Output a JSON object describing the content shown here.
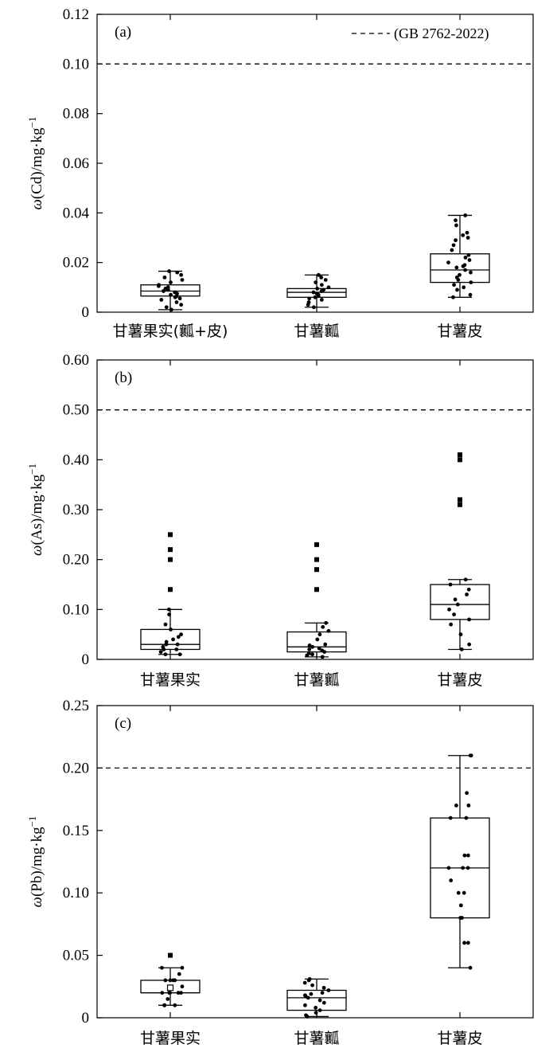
{
  "chart_data": [
    {
      "type": "box",
      "panel_label": "(a)",
      "ylabel_pre": "ω",
      "ylabel_mid": "(Cd)/mg·kg",
      "ylabel_sup": "−1",
      "ylim": [
        0,
        0.12
      ],
      "yticks": [
        "0",
        "0.02",
        "0.04",
        "0.06",
        "0.08",
        "0.10",
        "0.12"
      ],
      "ytick_values": [
        0,
        0.02,
        0.04,
        0.06,
        0.08,
        0.1,
        0.12
      ],
      "categories": [
        "甘薯果实(瓤+皮)",
        "甘薯瓤",
        "甘薯皮"
      ],
      "threshold": 0.1,
      "legend": "(GB 2762-2022)",
      "boxes": [
        {
          "q1": 0.0065,
          "median": 0.0085,
          "q3": 0.011,
          "whisker_low": 0.001,
          "whisker_high": 0.0165,
          "points": [
            0.001,
            0.002,
            0.003,
            0.004,
            0.005,
            0.0055,
            0.006,
            0.0065,
            0.007,
            0.0075,
            0.008,
            0.0085,
            0.009,
            0.0095,
            0.01,
            0.0105,
            0.011,
            0.012,
            0.013,
            0.014,
            0.015,
            0.016,
            0.0165
          ],
          "outliers": []
        },
        {
          "q1": 0.006,
          "median": 0.008,
          "q3": 0.0095,
          "whisker_low": 0.002,
          "whisker_high": 0.015,
          "points": [
            0.002,
            0.003,
            0.004,
            0.005,
            0.0055,
            0.006,
            0.0065,
            0.007,
            0.0075,
            0.008,
            0.0085,
            0.009,
            0.0095,
            0.01,
            0.011,
            0.012,
            0.013,
            0.014,
            0.015
          ],
          "outliers": []
        },
        {
          "q1": 0.012,
          "median": 0.017,
          "q3": 0.0235,
          "whisker_low": 0.006,
          "whisker_high": 0.039,
          "points": [
            0.006,
            0.007,
            0.009,
            0.01,
            0.011,
            0.012,
            0.013,
            0.014,
            0.015,
            0.016,
            0.017,
            0.018,
            0.0185,
            0.019,
            0.02,
            0.021,
            0.022,
            0.023,
            0.025,
            0.027,
            0.029,
            0.03,
            0.031,
            0.032,
            0.035,
            0.037,
            0.039
          ],
          "outliers": []
        }
      ]
    },
    {
      "type": "box",
      "panel_label": "(b)",
      "ylabel_pre": "ω",
      "ylabel_mid": "(As)/mg·kg",
      "ylabel_sup": "−1",
      "ylim": [
        0,
        0.6
      ],
      "yticks": [
        "0",
        "0.10",
        "0.20",
        "0.30",
        "0.40",
        "0.50",
        "0.60"
      ],
      "ytick_values": [
        0,
        0.1,
        0.2,
        0.3,
        0.4,
        0.5,
        0.6
      ],
      "categories": [
        "甘薯果实",
        "甘薯瓤",
        "甘薯皮"
      ],
      "threshold": 0.5,
      "legend": "",
      "boxes": [
        {
          "q1": 0.02,
          "median": 0.03,
          "q3": 0.06,
          "whisker_low": 0.01,
          "whisker_high": 0.1,
          "points": [
            0.01,
            0.01,
            0.015,
            0.02,
            0.02,
            0.025,
            0.03,
            0.03,
            0.035,
            0.04,
            0.045,
            0.05,
            0.06,
            0.07,
            0.09,
            0.1
          ],
          "outliers": [
            0.14,
            0.2,
            0.22,
            0.25
          ]
        },
        {
          "q1": 0.015,
          "median": 0.025,
          "q3": 0.055,
          "whisker_low": 0.005,
          "whisker_high": 0.073,
          "points": [
            0.005,
            0.008,
            0.01,
            0.012,
            0.015,
            0.018,
            0.02,
            0.022,
            0.025,
            0.028,
            0.03,
            0.04,
            0.05,
            0.057,
            0.065,
            0.073
          ],
          "outliers": [
            0.14,
            0.18,
            0.2,
            0.23
          ]
        },
        {
          "q1": 0.08,
          "median": 0.11,
          "q3": 0.15,
          "whisker_low": 0.02,
          "whisker_high": 0.16,
          "points": [
            0.02,
            0.03,
            0.05,
            0.07,
            0.08,
            0.09,
            0.1,
            0.11,
            0.12,
            0.13,
            0.14,
            0.15,
            0.16
          ],
          "outliers": [
            0.31,
            0.32,
            0.4,
            0.41
          ]
        }
      ]
    },
    {
      "type": "box",
      "panel_label": "(c)",
      "ylabel_pre": "ω",
      "ylabel_mid": "(Pb)/mg·kg",
      "ylabel_sup": "−1",
      "ylim": [
        0,
        0.25
      ],
      "yticks": [
        "0",
        "0.05",
        "0.10",
        "0.15",
        "0.20",
        "0.25"
      ],
      "ytick_values": [
        0,
        0.05,
        0.1,
        0.15,
        0.2,
        0.25
      ],
      "categories": [
        "甘薯果实",
        "甘薯瓤",
        "甘薯皮"
      ],
      "threshold": 0.2,
      "legend": "",
      "boxes": [
        {
          "q1": 0.02,
          "median": 0.02,
          "q3": 0.03,
          "whisker_low": 0.01,
          "whisker_high": 0.04,
          "points": [
            0.01,
            0.01,
            0.01,
            0.01,
            0.015,
            0.02,
            0.02,
            0.02,
            0.02,
            0.02,
            0.025,
            0.03,
            0.03,
            0.03,
            0.03,
            0.035,
            0.04,
            0.04
          ],
          "outliers": [
            0.05
          ],
          "mean": 0.024
        },
        {
          "q1": 0.006,
          "median": 0.016,
          "q3": 0.022,
          "whisker_low": 0.001,
          "whisker_high": 0.031,
          "points": [
            0.001,
            0.002,
            0.004,
            0.006,
            0.008,
            0.01,
            0.012,
            0.014,
            0.016,
            0.017,
            0.018,
            0.019,
            0.02,
            0.022,
            0.024,
            0.026,
            0.028,
            0.03,
            0.031
          ],
          "outliers": []
        },
        {
          "q1": 0.08,
          "median": 0.12,
          "q3": 0.16,
          "whisker_low": 0.04,
          "whisker_high": 0.21,
          "points": [
            0.04,
            0.06,
            0.06,
            0.08,
            0.08,
            0.09,
            0.1,
            0.1,
            0.11,
            0.12,
            0.12,
            0.12,
            0.13,
            0.13,
            0.16,
            0.16,
            0.17,
            0.17,
            0.18,
            0.21,
            0.21
          ],
          "outliers": []
        }
      ]
    }
  ]
}
